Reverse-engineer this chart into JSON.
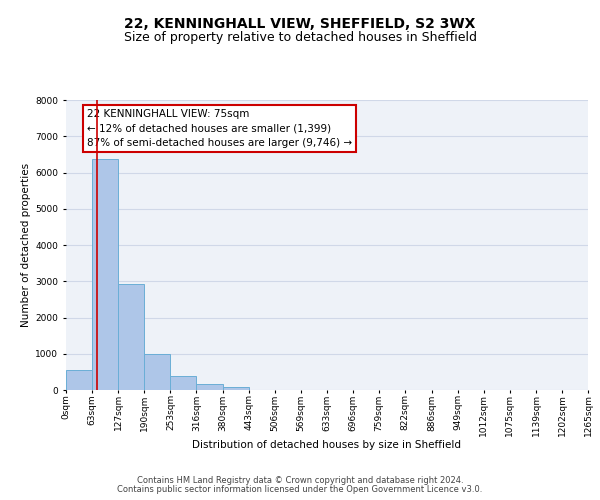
{
  "title": "22, KENNINGHALL VIEW, SHEFFIELD, S2 3WX",
  "subtitle": "Size of property relative to detached houses in Sheffield",
  "xlabel": "Distribution of detached houses by size in Sheffield",
  "ylabel": "Number of detached properties",
  "footnote1": "Contains HM Land Registry data © Crown copyright and database right 2024.",
  "footnote2": "Contains public sector information licensed under the Open Government Licence v3.0.",
  "annotation_title": "22 KENNINGHALL VIEW: 75sqm",
  "annotation_line2": "← 12% of detached houses are smaller (1,399)",
  "annotation_line3": "87% of semi-detached houses are larger (9,746) →",
  "property_line_x": 75,
  "bar_edges": [
    0,
    63,
    127,
    190,
    253,
    316,
    380,
    443,
    506,
    569,
    633,
    696,
    759,
    822,
    886,
    949,
    1012,
    1075,
    1139,
    1202,
    1265
  ],
  "bar_heights": [
    560,
    6380,
    2930,
    980,
    375,
    170,
    95,
    0,
    0,
    0,
    0,
    0,
    0,
    0,
    0,
    0,
    0,
    0,
    0,
    0
  ],
  "bar_color": "#aec6e8",
  "bar_edge_color": "#6aaed6",
  "ylim": [
    0,
    8000
  ],
  "yticks": [
    0,
    1000,
    2000,
    3000,
    4000,
    5000,
    6000,
    7000,
    8000
  ],
  "tick_labels": [
    "0sqm",
    "63sqm",
    "127sqm",
    "190sqm",
    "253sqm",
    "316sqm",
    "380sqm",
    "443sqm",
    "506sqm",
    "569sqm",
    "633sqm",
    "696sqm",
    "759sqm",
    "822sqm",
    "886sqm",
    "949sqm",
    "1012sqm",
    "1075sqm",
    "1139sqm",
    "1202sqm",
    "1265sqm"
  ],
  "grid_color": "#d0d8e8",
  "bg_color": "#eef2f8",
  "annotation_box_color": "#ffffff",
  "annotation_box_edge": "#cc0000",
  "property_line_color": "#cc0000",
  "title_fontsize": 10,
  "subtitle_fontsize": 9,
  "axis_label_fontsize": 7.5,
  "annotation_fontsize": 7.5,
  "tick_fontsize": 6.5,
  "footnote_fontsize": 6.0
}
